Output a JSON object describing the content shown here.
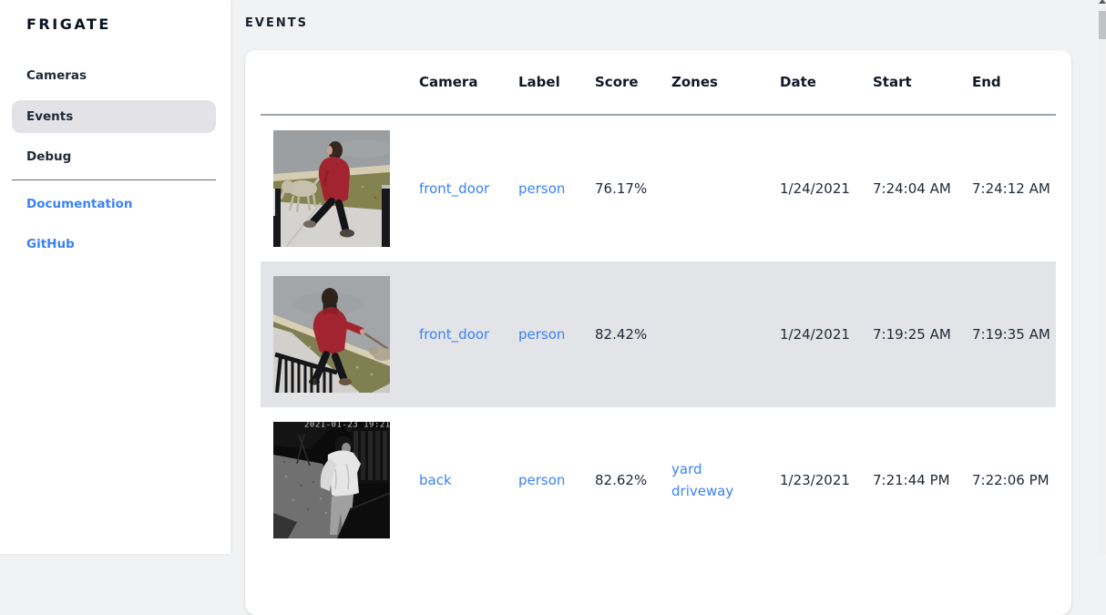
{
  "sidebar": {
    "logo": "FRIGATE",
    "items": [
      {
        "label": "Cameras",
        "selected": false
      },
      {
        "label": "Events",
        "selected": true
      },
      {
        "label": "Debug",
        "selected": false
      }
    ],
    "links": [
      {
        "label": "Documentation"
      },
      {
        "label": "GitHub"
      }
    ]
  },
  "page": {
    "title": "EVENTS"
  },
  "table": {
    "columns": [
      "Camera",
      "Label",
      "Score",
      "Zones",
      "Date",
      "Start",
      "End"
    ],
    "rows": [
      {
        "thumb": "thumb-front-door-1",
        "thumb_alt": "person in red coat walking a dog on sidewalk (daytime)",
        "camera": "front_door",
        "label": "person",
        "score": "76.17%",
        "zones": [],
        "date": "1/24/2021",
        "start": "7:24:04 AM",
        "end": "7:24:12 AM",
        "highlighted": false
      },
      {
        "thumb": "thumb-front-door-2",
        "thumb_alt": "person in red hoodie walking a dog past a railing (daytime)",
        "camera": "front_door",
        "label": "person",
        "score": "82.42%",
        "zones": [],
        "date": "1/24/2021",
        "start": "7:19:25 AM",
        "end": "7:19:35 AM",
        "highlighted": true
      },
      {
        "thumb": "thumb-back-night",
        "thumb_alt": "person in white shirt on night infrared camera",
        "camera": "back",
        "label": "person",
        "score": "82.62%",
        "zones": [
          "yard",
          "driveway"
        ],
        "date": "1/23/2021",
        "start": "7:21:44 PM",
        "end": "7:22:06 PM",
        "highlighted": false
      }
    ]
  },
  "colors": {
    "link_blue": "#3b82f6",
    "row_highlight": "#e3e4e8",
    "selected_nav_bg": "#e2e2e7",
    "heading_text": "#17202e",
    "body_text": "#1f2937",
    "main_background": "#f1f2f4",
    "card_background": "#ffffff",
    "header_underline": "#9ca3af",
    "divider": "#646c7a"
  }
}
